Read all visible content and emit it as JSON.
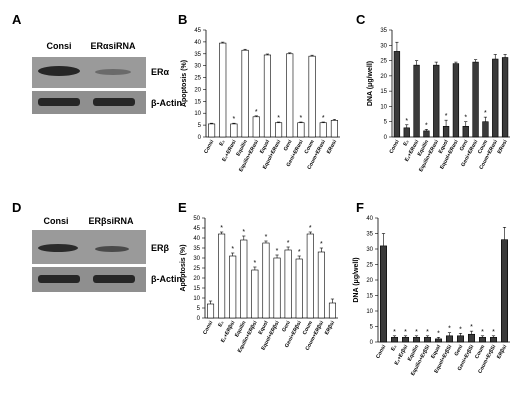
{
  "panels": {
    "A": {
      "letter": "A",
      "lanes": [
        "Consi",
        "ERαsiRNA"
      ],
      "rows": [
        "ERα",
        "β-Actin"
      ]
    },
    "D": {
      "letter": "D",
      "lanes": [
        "Consi",
        "ERβsiRNA"
      ],
      "rows": [
        "ERβ",
        "β-Actin"
      ]
    }
  },
  "chart_data": [
    {
      "panel": "B",
      "type": "bar",
      "ylabel": "Apoptosis (%)",
      "ylim": [
        0,
        45
      ],
      "yticks": [
        0,
        5,
        10,
        15,
        20,
        25,
        30,
        35,
        40,
        45
      ],
      "bar_color": "#ffffff",
      "categories": [
        "Consi",
        "E₂",
        "E₂+ERαsi",
        "Equilin",
        "Equilin+ERαsi",
        "Equol",
        "Equol+ERαsi",
        "Geni",
        "Geni+ERαsi",
        "Coum",
        "Coum+ERαsi",
        "ERαsi"
      ],
      "values": [
        5.5,
        39.5,
        5.5,
        36.5,
        8.5,
        34.5,
        6.0,
        35.0,
        6.0,
        34.0,
        6.0,
        7.0
      ],
      "errors": [
        0.3,
        0.4,
        0.3,
        0.4,
        0.4,
        0.4,
        0.3,
        0.4,
        0.3,
        0.4,
        0.3,
        0.4
      ],
      "markers": [
        "",
        "",
        "*",
        "",
        "*",
        "",
        "*",
        "",
        "*",
        "",
        "*",
        ""
      ]
    },
    {
      "panel": "C",
      "type": "bar",
      "ylabel": "DNA (μg/well)",
      "ylim": [
        0,
        35
      ],
      "yticks": [
        0,
        5,
        10,
        15,
        20,
        25,
        30,
        35
      ],
      "bar_color": "#3a3a3a",
      "categories": [
        "Consi",
        "E₂",
        "E₂+ERαsi",
        "Equilin",
        "Equilin+ERαsi",
        "Equol",
        "Equol+ERαsi",
        "Geni",
        "Geni+ERαsi",
        "Coum",
        "Coum+ERαsi",
        "ERαsi"
      ],
      "values": [
        28,
        3,
        23.5,
        2,
        23.5,
        3.5,
        24,
        3.5,
        24.5,
        5,
        25.5,
        26
      ],
      "errors": [
        3,
        1,
        1.5,
        0.5,
        1,
        2,
        0.5,
        1.5,
        0.8,
        1.5,
        1.5,
        1
      ],
      "markers": [
        "",
        "*",
        "",
        "*",
        "",
        "*",
        "",
        "*",
        "",
        "*",
        "",
        ""
      ]
    },
    {
      "panel": "E",
      "type": "bar",
      "ylabel": "Apoptosis (%)",
      "ylim": [
        0,
        50
      ],
      "yticks": [
        0,
        5,
        10,
        15,
        20,
        25,
        30,
        35,
        40,
        45,
        50
      ],
      "bar_color": "#ffffff",
      "categories": [
        "Consi",
        "E₂",
        "E₂+ERβsi",
        "Equilin",
        "Equilin+ERβsi",
        "Equol",
        "Equol+ERβsi",
        "Geni",
        "Geni+ERβsi",
        "Coum",
        "Coum+ERβsi",
        "ERβsi"
      ],
      "values": [
        7,
        42,
        31,
        39,
        24,
        37.5,
        30,
        34,
        29.5,
        42,
        33,
        7.5
      ],
      "errors": [
        1.5,
        1,
        1.5,
        2,
        1.5,
        1,
        1.5,
        1.5,
        1.5,
        1,
        2,
        2
      ],
      "markers": [
        "",
        "*",
        "*",
        "*",
        "*",
        "*",
        "*",
        "*",
        "*",
        "*",
        "*",
        ""
      ]
    },
    {
      "panel": "F",
      "type": "bar",
      "ylabel": "DNA (μg/well)",
      "ylim": [
        0,
        40
      ],
      "yticks": [
        0,
        5,
        10,
        15,
        20,
        25,
        30,
        35,
        40
      ],
      "bar_color": "#3a3a3a",
      "categories": [
        "Consi",
        "E₂",
        "E₂+Erβsi",
        "Equilin",
        "Equilin+ErβSi",
        "Equol",
        "Equol+ErβSi",
        "Geni",
        "Geni+ErβSi",
        "Coum",
        "Coum+ErβSi",
        "ERβsi"
      ],
      "values": [
        31,
        1.5,
        1.5,
        1.5,
        1.5,
        1,
        2,
        2,
        2.5,
        1.5,
        1.5,
        33
      ],
      "errors": [
        4,
        0.5,
        0.5,
        0.5,
        0.5,
        0.5,
        1,
        0.8,
        1,
        0.5,
        0.5,
        4
      ],
      "markers": [
        "",
        "*",
        "*",
        "*",
        "*",
        "*",
        "*",
        "*",
        "*",
        "*",
        "*",
        ""
      ]
    }
  ]
}
